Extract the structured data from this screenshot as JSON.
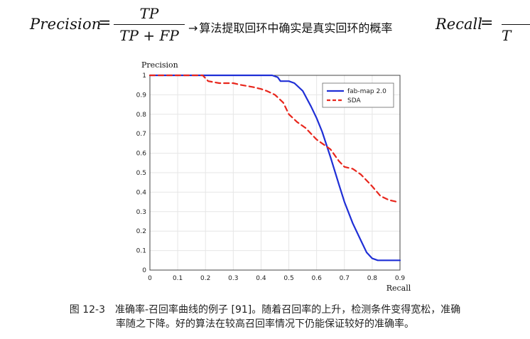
{
  "formula": {
    "lhs": "Precision",
    "equals": "=",
    "numerator": "TP",
    "denominator": "TP + FP",
    "arrow": "→",
    "description": "算法提取回环中确实是真实回环的概率",
    "rhs": "Recall",
    "rhs_equals": "=",
    "rhs_numerator": "",
    "rhs_denominator": "T"
  },
  "chart_data": {
    "type": "line",
    "ylabel": "Precision",
    "xlabel": "Recall",
    "xlim": [
      0,
      0.9
    ],
    "ylim": [
      0,
      1
    ],
    "xticks": [
      "0",
      "0.1",
      "0.2",
      "0.3",
      "0.4",
      "0.5",
      "0.6",
      "0.7",
      "0.8",
      "0.9"
    ],
    "yticks": [
      "0",
      "0.1",
      "0.2",
      "0.3",
      "0.4",
      "0.5",
      "0.6",
      "0.7",
      "0.8",
      "0.9",
      "1"
    ],
    "grid": true,
    "legend_position": "top-right",
    "series": [
      {
        "name": "fab-map 2.0",
        "color": "#1f2fd6",
        "style": "solid",
        "x": [
          0,
          0.1,
          0.2,
          0.3,
          0.44,
          0.46,
          0.47,
          0.5,
          0.52,
          0.55,
          0.58,
          0.6,
          0.62,
          0.65,
          0.68,
          0.7,
          0.73,
          0.76,
          0.78,
          0.8,
          0.82,
          0.85,
          0.88,
          0.9
        ],
        "y": [
          1,
          1,
          1,
          1,
          1,
          0.99,
          0.97,
          0.97,
          0.96,
          0.92,
          0.84,
          0.78,
          0.71,
          0.58,
          0.44,
          0.35,
          0.24,
          0.15,
          0.09,
          0.06,
          0.05,
          0.05,
          0.05,
          0.05
        ]
      },
      {
        "name": "SDA",
        "color": "#e8261c",
        "style": "dashed",
        "x": [
          0,
          0.1,
          0.19,
          0.21,
          0.25,
          0.3,
          0.33,
          0.37,
          0.4,
          0.42,
          0.45,
          0.48,
          0.5,
          0.53,
          0.56,
          0.6,
          0.63,
          0.65,
          0.68,
          0.7,
          0.73,
          0.76,
          0.8,
          0.83,
          0.86,
          0.89
        ],
        "y": [
          1,
          1,
          1,
          0.97,
          0.96,
          0.96,
          0.95,
          0.94,
          0.93,
          0.92,
          0.9,
          0.86,
          0.8,
          0.76,
          0.73,
          0.67,
          0.64,
          0.62,
          0.56,
          0.53,
          0.52,
          0.49,
          0.43,
          0.38,
          0.36,
          0.35
        ]
      }
    ]
  },
  "caption": {
    "line1": "图 12-3　准确率-召回率曲线的例子 [91]。随着召回率的上升，检测条件变得宽松，准确",
    "line2": "率随之下降。好的算法在较高召回率情况下仍能保证较好的准确率。"
  }
}
